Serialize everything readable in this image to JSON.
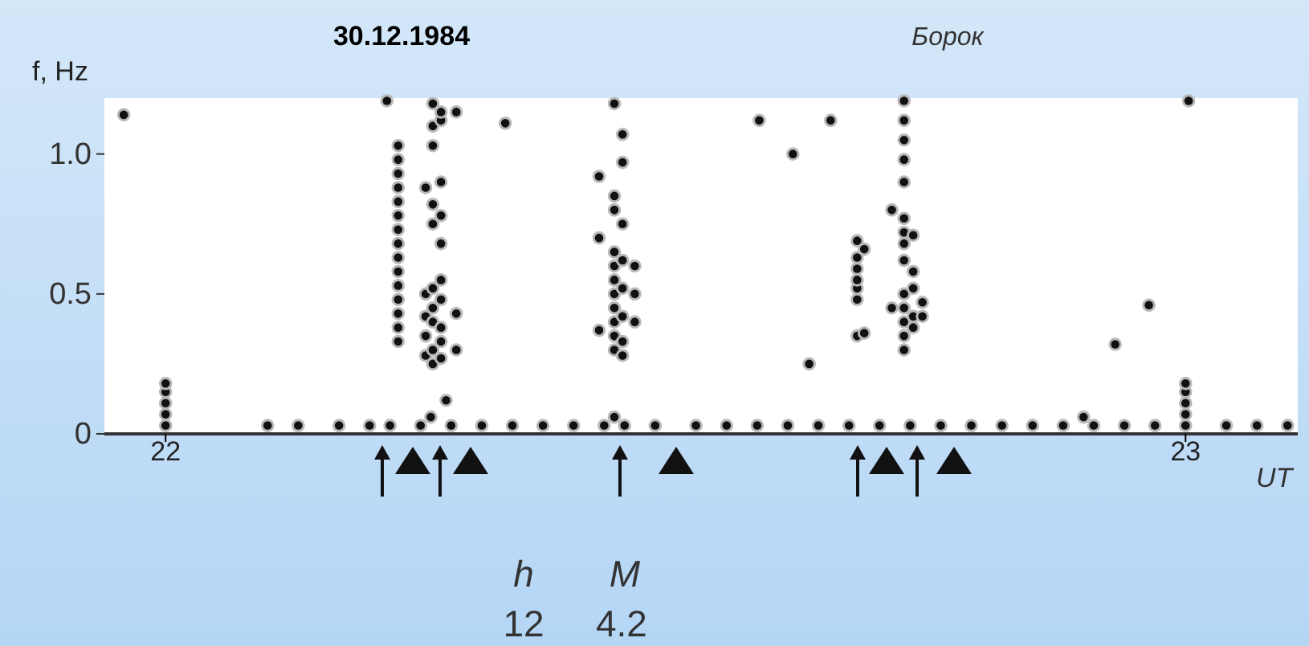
{
  "chart_data": {
    "type": "scatter",
    "title": "30.12.1984",
    "subtitle": "Борок",
    "ylabel": "f, Hz",
    "xlabel": "UT",
    "annotations": [
      "h",
      "M",
      "12",
      "4.2"
    ],
    "xlim": [
      21.94,
      23.11
    ],
    "xticks": [
      22,
      23
    ],
    "ylim": [
      0,
      1.2
    ],
    "yticks": [
      0,
      0.5,
      {
        "value": 1,
        "label": "1.0"
      }
    ],
    "grid": false,
    "marker": "circle",
    "series": [
      {
        "color": "#111111",
        "x": [
          21.959,
          22.333,
          22.582,
          22.652,
          22.615,
          22.631,
          22.931,
          22.964,
          23.003,
          22.217,
          22.228,
          22.228,
          22.228,
          22.228,
          22.228,
          22.228,
          22.228,
          22.228,
          22.228,
          22.228,
          22.228,
          22.228,
          22.228,
          22.228,
          22.228,
          22.255,
          22.255,
          22.255,
          22.255,
          22.255,
          22.262,
          22.262,
          22.262,
          22.262,
          22.262,
          22.262,
          22.262,
          22.262,
          22.262,
          22.262,
          22.27,
          22.27,
          22.27,
          22.27,
          22.27,
          22.27,
          22.27,
          22.27,
          22.27,
          22.27,
          22.285,
          22.285,
          22.285,
          22.275,
          22.425,
          22.425,
          22.425,
          22.44,
          22.44,
          22.44,
          22.44,
          22.44,
          22.44,
          22.44,
          22.44,
          22.44,
          22.44,
          22.44,
          22.448,
          22.448,
          22.448,
          22.448,
          22.448,
          22.448,
          22.448,
          22.448,
          22.46,
          22.46,
          22.46,
          22.678,
          22.678,
          22.678,
          22.678,
          22.678,
          22.678,
          22.678,
          22.685,
          22.685,
          22.724,
          22.724,
          22.724,
          22.724,
          22.724,
          22.724,
          22.724,
          22.724,
          22.724,
          22.724,
          22.724,
          22.724,
          22.724,
          22.724,
          22.733,
          22.733,
          22.733,
          22.733,
          22.733,
          22.712,
          22.712,
          22.742,
          22.742,
          22,
          22,
          22,
          22,
          22,
          23,
          23,
          23,
          23,
          23,
          22.1,
          22.13,
          22.17,
          22.2,
          22.22,
          22.25,
          22.28,
          22.31,
          22.34,
          22.37,
          22.4,
          22.43,
          22.45,
          22.48,
          22.52,
          22.55,
          22.58,
          22.61,
          22.64,
          22.67,
          22.7,
          22.73,
          22.76,
          22.79,
          22.82,
          22.85,
          22.88,
          22.91,
          22.94,
          22.97,
          23.04,
          23.07,
          23.1,
          22.44,
          22.26,
          22.9
        ],
        "values": [
          1.14,
          1.11,
          1.12,
          1.12,
          1.0,
          0.25,
          0.32,
          0.46,
          1.19,
          1.19,
          0.33,
          0.38,
          0.43,
          0.48,
          0.53,
          0.58,
          0.63,
          0.68,
          0.73,
          0.78,
          0.83,
          0.88,
          0.93,
          0.98,
          1.03,
          0.28,
          0.35,
          0.42,
          0.5,
          0.88,
          0.25,
          0.3,
          0.4,
          0.45,
          0.52,
          0.75,
          0.82,
          1.03,
          1.1,
          1.18,
          0.27,
          0.33,
          0.38,
          0.48,
          0.55,
          0.68,
          0.78,
          0.9,
          1.12,
          1.15,
          1.15,
          0.43,
          0.3,
          0.12,
          0.37,
          0.7,
          0.92,
          0.3,
          0.35,
          0.4,
          0.45,
          0.5,
          0.55,
          0.6,
          0.65,
          0.8,
          0.85,
          1.18,
          0.28,
          0.33,
          0.42,
          0.52,
          0.62,
          0.75,
          0.97,
          1.07,
          0.4,
          0.5,
          0.6,
          0.35,
          0.48,
          0.52,
          0.55,
          0.59,
          0.63,
          0.69,
          0.36,
          0.66,
          0.3,
          0.35,
          0.4,
          0.45,
          0.5,
          0.62,
          0.68,
          0.72,
          0.77,
          0.9,
          0.98,
          1.05,
          1.12,
          1.19,
          0.38,
          0.42,
          0.52,
          0.58,
          0.71,
          0.45,
          0.8,
          0.42,
          0.47,
          0.03,
          0.07,
          0.11,
          0.15,
          0.18,
          0.03,
          0.07,
          0.11,
          0.15,
          0.18,
          0.03,
          0.03,
          0.03,
          0.03,
          0.03,
          0.03,
          0.03,
          0.03,
          0.03,
          0.03,
          0.03,
          0.03,
          0.03,
          0.03,
          0.03,
          0.03,
          0.03,
          0.03,
          0.03,
          0.03,
          0.03,
          0.03,
          0.03,
          0.03,
          0.03,
          0.03,
          0.03,
          0.03,
          0.03,
          0.03,
          0.03,
          0.03,
          0.03,
          0.06,
          0.06,
          0.06
        ]
      }
    ]
  }
}
